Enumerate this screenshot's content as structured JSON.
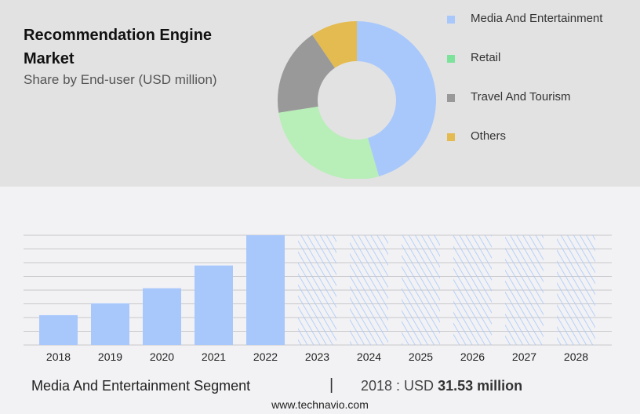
{
  "title": "Recommendation Engine Market",
  "subtitle": "Share by End-user (USD million)",
  "chart_data": [
    {
      "type": "pie",
      "variant": "donut",
      "slices": [
        {
          "label": "Media And Entertainment",
          "value": 45.5,
          "color": "#a8c8fc"
        },
        {
          "label": "Retail",
          "value": 27,
          "color": "#b8eeb8"
        },
        {
          "label": "Travel And Tourism",
          "value": 18,
          "color": "#999999"
        },
        {
          "label": "Others",
          "value": 9.5,
          "color": "#e4bb50"
        }
      ],
      "legend": [
        {
          "label": "Media And Entertainment",
          "color": "#a8c8fc"
        },
        {
          "label": "Retail",
          "color": "#7de39a"
        },
        {
          "label": "Travel And Tourism",
          "color": "#999999"
        },
        {
          "label": "Others",
          "color": "#e4bb50"
        }
      ],
      "legend_placement": "right"
    },
    {
      "type": "bar",
      "categories": [
        "2018",
        "2019",
        "2020",
        "2021",
        "2022",
        "2023",
        "2024",
        "2025",
        "2026",
        "2027",
        "2028"
      ],
      "values": [
        31.53,
        44,
        60,
        84,
        116,
        null,
        null,
        null,
        null,
        null,
        null
      ],
      "forecast_hatched": [
        "2023",
        "2024",
        "2025",
        "2026",
        "2027",
        "2028"
      ],
      "color": "#a8c8fc",
      "grid": true,
      "ylim": [
        0,
        116
      ]
    }
  ],
  "footer": {
    "segment": "Media And Entertainment Segment",
    "separator": "|",
    "value_prefix": "2018 : USD",
    "value": "31.53 million",
    "site": "www.technavio.com"
  }
}
